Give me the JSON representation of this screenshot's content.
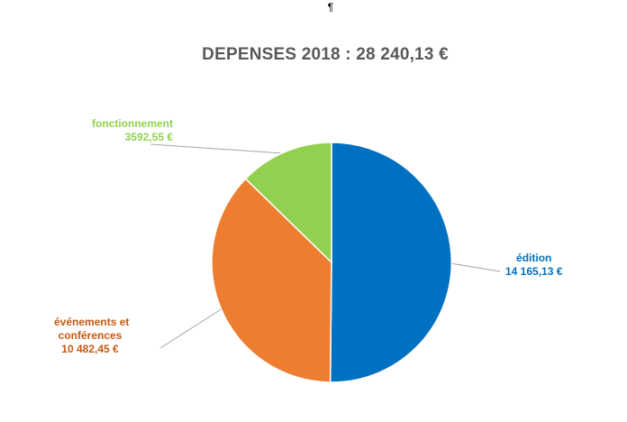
{
  "page": {
    "pilcrow": "¶"
  },
  "chart_data": {
    "type": "pie",
    "title": "DEPENSES 2018 : 28 240,13 €",
    "total": 28240.13,
    "slices": [
      {
        "name": "édition",
        "value": 14165.13,
        "value_label": "14 165,13 €",
        "color": "#0070C0",
        "label_color": "#0070C0"
      },
      {
        "name": "événements et conférences",
        "name_lines": [
          "événements et",
          "conférences"
        ],
        "value": 10482.45,
        "value_label": "10 482,45 €",
        "color": "#ED7D31",
        "label_color": "#C55A11"
      },
      {
        "name": "fonctionnement",
        "value": 3592.55,
        "value_label": "3592,55 €",
        "color": "#92D050",
        "label_color": "#92D050"
      }
    ],
    "legend": "none",
    "start_angle": "12 o'clock, clockwise"
  }
}
